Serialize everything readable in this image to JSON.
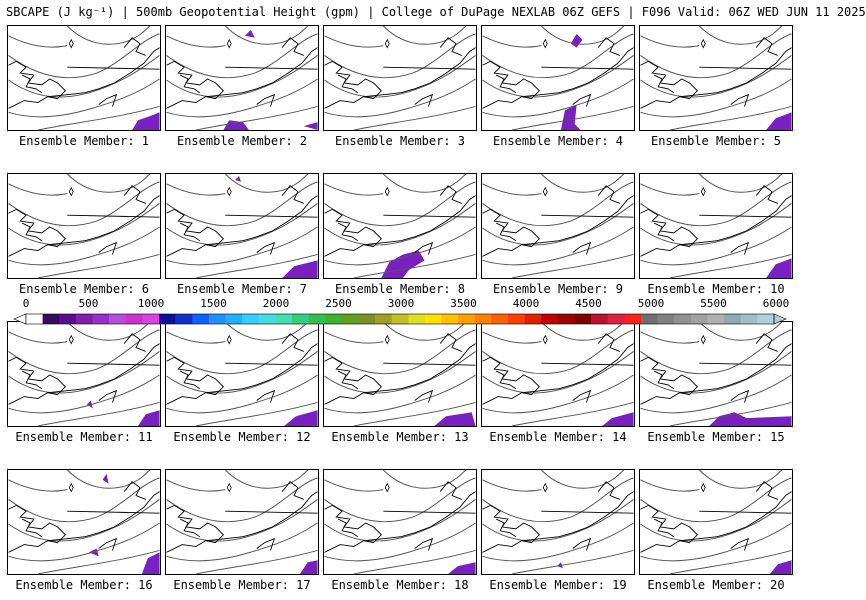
{
  "title": "SBCAPE (J kg⁻¹) | 500mb Geopotential Height (gpm) | College of DuPage NEXLAB 06Z GEFS | F096 Valid: 06Z WED JUN 11 2025",
  "caption_prefix": "Ensemble Member: ",
  "members": [
    {
      "label": "Ensemble Member: 1"
    },
    {
      "label": "Ensemble Member: 2"
    },
    {
      "label": "Ensemble Member: 3"
    },
    {
      "label": "Ensemble Member: 4"
    },
    {
      "label": "Ensemble Member: 5"
    },
    {
      "label": "Ensemble Member: 6"
    },
    {
      "label": "Ensemble Member: 7"
    },
    {
      "label": "Ensemble Member: 8"
    },
    {
      "label": "Ensemble Member: 9"
    },
    {
      "label": "Ensemble Member: 10"
    },
    {
      "label": "Ensemble Member: 11"
    },
    {
      "label": "Ensemble Member: 12"
    },
    {
      "label": "Ensemble Member: 13"
    },
    {
      "label": "Ensemble Member: 14"
    },
    {
      "label": "Ensemble Member: 15"
    },
    {
      "label": "Ensemble Member: 16"
    },
    {
      "label": "Ensemble Member: 17"
    },
    {
      "label": "Ensemble Member: 18"
    },
    {
      "label": "Ensemble Member: 19"
    },
    {
      "label": "Ensemble Member: 20"
    }
  ],
  "colorbar": {
    "ticks": [
      "0",
      "500",
      "1000",
      "1500",
      "2000",
      "2500",
      "3000",
      "3500",
      "4000",
      "4500",
      "5000",
      "5500",
      "6000"
    ],
    "colors": [
      "#ffffff",
      "#3a0a5e",
      "#5a0f8a",
      "#7e1fb0",
      "#9a2fd0",
      "#b84ce0",
      "#cc33cc",
      "#e040e0",
      "#1010a0",
      "#1030d0",
      "#1060ff",
      "#2090ff",
      "#20b0ff",
      "#30d0ff",
      "#40e0e0",
      "#40e0b0",
      "#30d080",
      "#30c050",
      "#40b030",
      "#60a020",
      "#809020",
      "#a0a020",
      "#c0c020",
      "#e0e020",
      "#ffe000",
      "#ffc000",
      "#ffa000",
      "#ff8000",
      "#ff6000",
      "#ff4000",
      "#e02000",
      "#c00000",
      "#a00000",
      "#800000",
      "#c01030",
      "#e02040",
      "#ff2020",
      "#707070",
      "#808080",
      "#909090",
      "#a0a0a0",
      "#b0b0b0",
      "#90a8b0",
      "#a0c0c8",
      "#b0d0d8"
    ],
    "cape_color": "#7a1fc0"
  }
}
